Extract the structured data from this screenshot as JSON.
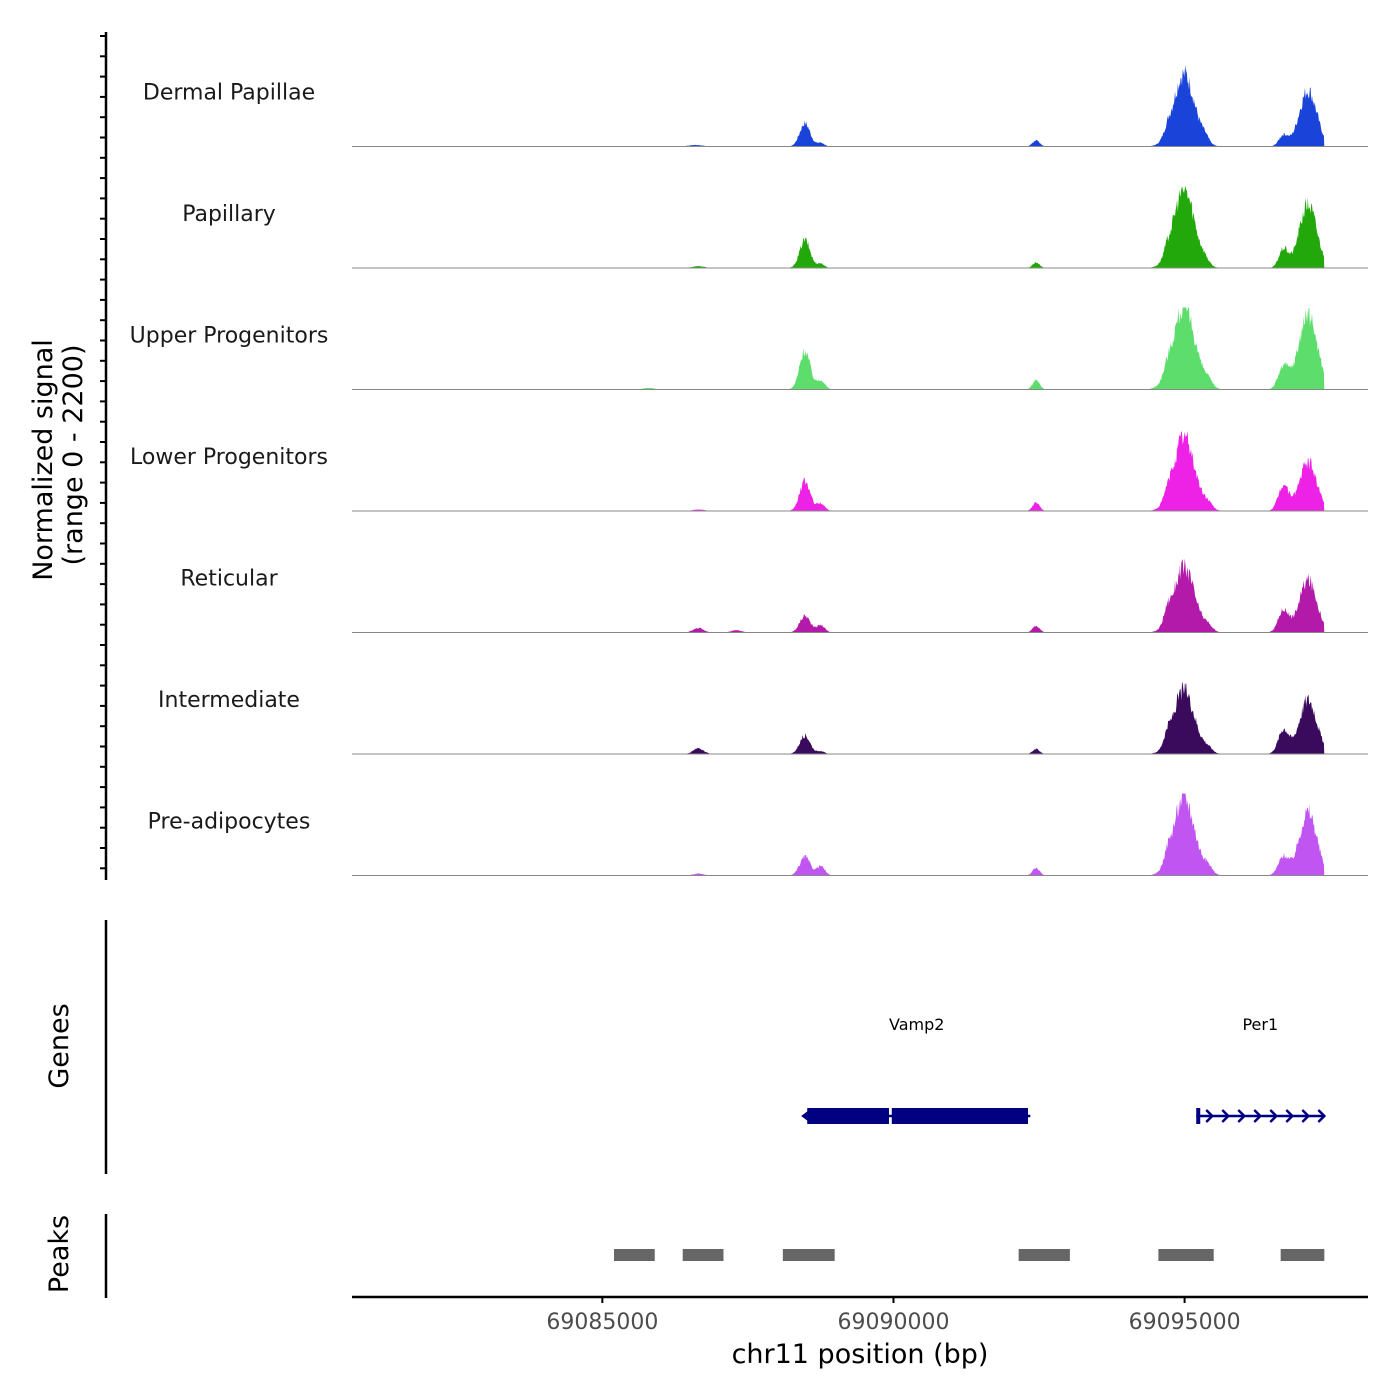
{
  "chart_data": {
    "type": "area",
    "title": "",
    "ylabel": "Normalized signal",
    "ylabel_range": "(range 0 - 2200)",
    "ylim": [
      0,
      2200
    ],
    "xlabel": "chr11 position (bp)",
    "chromosome": "chr11",
    "xlim": [
      69080700,
      69098150
    ],
    "x_ticks": [
      69085000,
      69090000,
      69095000
    ],
    "x_tick_labels": [
      "69085000",
      "69090000",
      "69095000"
    ],
    "tracks": [
      {
        "name": "Dermal Papillae",
        "color": "#1a44d9",
        "peaks": [
          {
            "pos": 69086600,
            "height": 40,
            "width": 120
          },
          {
            "pos": 69088480,
            "height": 620,
            "width": 90
          },
          {
            "pos": 69088750,
            "height": 100,
            "width": 60
          },
          {
            "pos": 69092450,
            "height": 170,
            "width": 60
          },
          {
            "pos": 69094700,
            "height": 150,
            "width": 60
          },
          {
            "pos": 69094990,
            "height": 1950,
            "width": 180
          },
          {
            "pos": 69095350,
            "height": 150,
            "width": 70
          },
          {
            "pos": 69096700,
            "height": 300,
            "width": 80
          },
          {
            "pos": 69097120,
            "height": 1500,
            "width": 150
          }
        ]
      },
      {
        "name": "Papillary",
        "color": "#22a80b",
        "peaks": [
          {
            "pos": 69086650,
            "height": 50,
            "width": 100
          },
          {
            "pos": 69088480,
            "height": 750,
            "width": 90
          },
          {
            "pos": 69088750,
            "height": 120,
            "width": 60
          },
          {
            "pos": 69092450,
            "height": 150,
            "width": 60
          },
          {
            "pos": 69094700,
            "height": 180,
            "width": 60
          },
          {
            "pos": 69094990,
            "height": 2100,
            "width": 180
          },
          {
            "pos": 69095350,
            "height": 120,
            "width": 70
          },
          {
            "pos": 69096700,
            "height": 500,
            "width": 80
          },
          {
            "pos": 69097120,
            "height": 1700,
            "width": 150
          }
        ]
      },
      {
        "name": "Upper Progenitors",
        "color": "#5ddd6c",
        "peaks": [
          {
            "pos": 69085800,
            "height": 40,
            "width": 100
          },
          {
            "pos": 69088480,
            "height": 1050,
            "width": 90
          },
          {
            "pos": 69088750,
            "height": 250,
            "width": 70
          },
          {
            "pos": 69092450,
            "height": 250,
            "width": 60
          },
          {
            "pos": 69094700,
            "height": 180,
            "width": 60
          },
          {
            "pos": 69094990,
            "height": 2200,
            "width": 190
          },
          {
            "pos": 69095400,
            "height": 170,
            "width": 80
          },
          {
            "pos": 69096700,
            "height": 600,
            "width": 90
          },
          {
            "pos": 69097120,
            "height": 2000,
            "width": 160
          }
        ]
      },
      {
        "name": "Lower Progenitors",
        "color": "#ee22e6",
        "peaks": [
          {
            "pos": 69086650,
            "height": 40,
            "width": 100
          },
          {
            "pos": 69088480,
            "height": 800,
            "width": 90
          },
          {
            "pos": 69088750,
            "height": 200,
            "width": 70
          },
          {
            "pos": 69092450,
            "height": 230,
            "width": 60
          },
          {
            "pos": 69094700,
            "height": 180,
            "width": 60
          },
          {
            "pos": 69094990,
            "height": 2000,
            "width": 180
          },
          {
            "pos": 69095400,
            "height": 170,
            "width": 80
          },
          {
            "pos": 69096700,
            "height": 680,
            "width": 90
          },
          {
            "pos": 69097120,
            "height": 1300,
            "width": 150
          }
        ]
      },
      {
        "name": "Reticular",
        "color": "#b31aaa",
        "peaks": [
          {
            "pos": 69086650,
            "height": 120,
            "width": 90
          },
          {
            "pos": 69087300,
            "height": 60,
            "width": 90
          },
          {
            "pos": 69088480,
            "height": 450,
            "width": 90
          },
          {
            "pos": 69088750,
            "height": 200,
            "width": 70
          },
          {
            "pos": 69092450,
            "height": 180,
            "width": 60
          },
          {
            "pos": 69094700,
            "height": 300,
            "width": 60
          },
          {
            "pos": 69094990,
            "height": 1750,
            "width": 180
          },
          {
            "pos": 69095400,
            "height": 150,
            "width": 80
          },
          {
            "pos": 69096700,
            "height": 600,
            "width": 90
          },
          {
            "pos": 69097120,
            "height": 1400,
            "width": 150
          }
        ]
      },
      {
        "name": "Intermediate",
        "color": "#3a0a5c",
        "peaks": [
          {
            "pos": 69086650,
            "height": 150,
            "width": 90
          },
          {
            "pos": 69088480,
            "height": 500,
            "width": 90
          },
          {
            "pos": 69088750,
            "height": 80,
            "width": 60
          },
          {
            "pos": 69092450,
            "height": 130,
            "width": 60
          },
          {
            "pos": 69094700,
            "height": 250,
            "width": 60
          },
          {
            "pos": 69094990,
            "height": 1700,
            "width": 180
          },
          {
            "pos": 69095400,
            "height": 130,
            "width": 80
          },
          {
            "pos": 69096700,
            "height": 650,
            "width": 90
          },
          {
            "pos": 69097120,
            "height": 1450,
            "width": 150
          }
        ]
      },
      {
        "name": "Pre-adipocytes",
        "color": "#c155f2",
        "peaks": [
          {
            "pos": 69086650,
            "height": 50,
            "width": 90
          },
          {
            "pos": 69088480,
            "height": 500,
            "width": 90
          },
          {
            "pos": 69088750,
            "height": 250,
            "width": 70
          },
          {
            "pos": 69092450,
            "height": 200,
            "width": 60
          },
          {
            "pos": 69094700,
            "height": 250,
            "width": 60
          },
          {
            "pos": 69094990,
            "height": 2100,
            "width": 180
          },
          {
            "pos": 69095400,
            "height": 200,
            "width": 80
          },
          {
            "pos": 69096700,
            "height": 500,
            "width": 90
          },
          {
            "pos": 69097120,
            "height": 1700,
            "width": 150
          }
        ]
      }
    ],
    "genes_panel_label": "Genes",
    "gene_color": "#000080",
    "genes": [
      {
        "name": "Vamp2",
        "start": 69088450,
        "end": 69092350,
        "strand": "-",
        "label_pos": 69090400
      },
      {
        "name": "Per1",
        "start": 69095200,
        "end": 69097400,
        "strand": "+",
        "label_pos": 69096300
      }
    ],
    "peaks_panel_label": "Peaks",
    "peak_color": "#666666",
    "peak_regions": [
      [
        69085200,
        69085900
      ],
      [
        69086380,
        69087080
      ],
      [
        69088100,
        69088990
      ],
      [
        69092150,
        69093030
      ],
      [
        69094550,
        69095500
      ],
      [
        69096650,
        69097400
      ]
    ]
  }
}
